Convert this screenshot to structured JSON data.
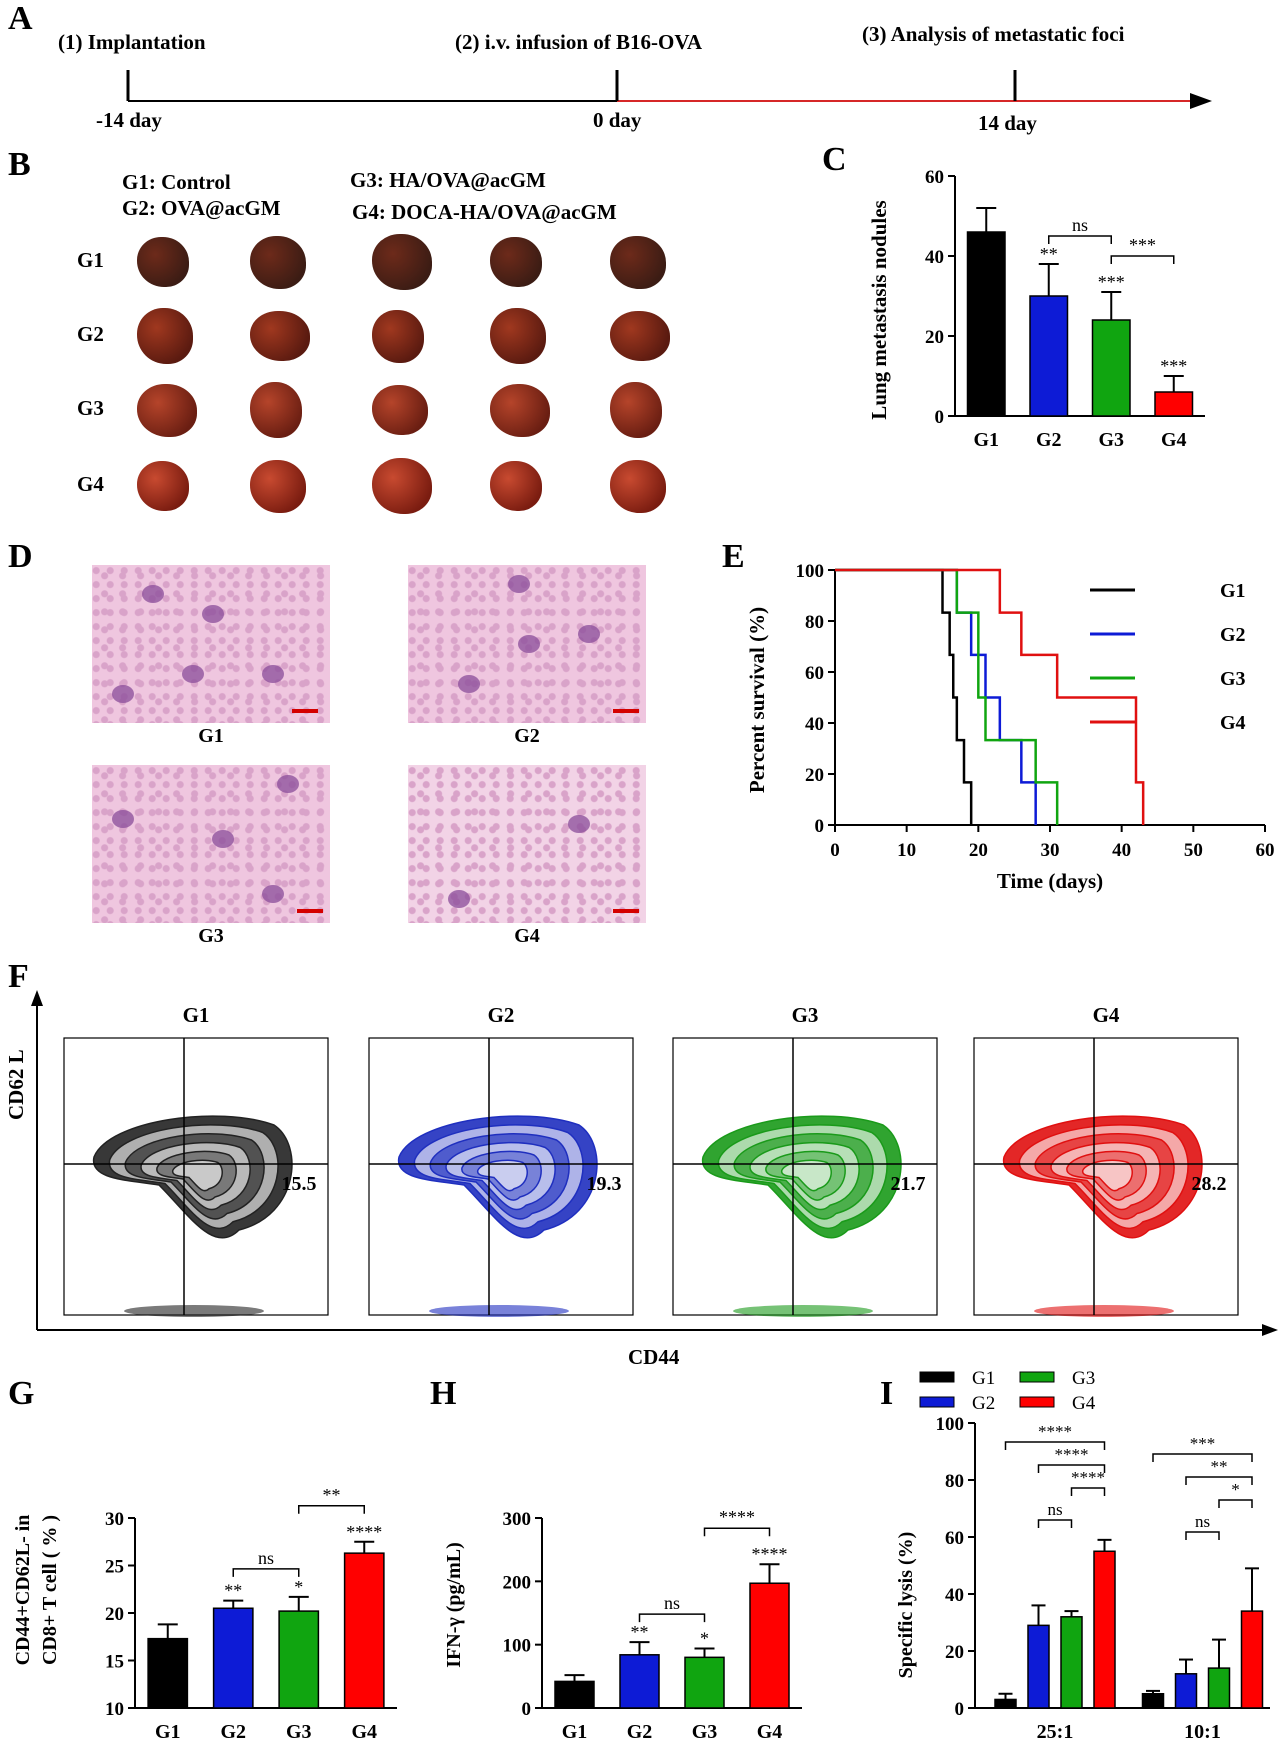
{
  "panel_letters": {
    "A": "A",
    "B": "B",
    "C": "C",
    "D": "D",
    "E": "E",
    "F": "F",
    "G": "G",
    "H": "H",
    "I": "I"
  },
  "timeline": {
    "step1": "(1) Implantation",
    "step2": "(2) i.v. infusion of B16-OVA",
    "step3": "(3) Analysis of metastatic foci",
    "t1": "-14 day",
    "t2": "0 day",
    "t3": "14 day",
    "colors": {
      "pre": "#000000",
      "post": "#d62728"
    }
  },
  "panel_B": {
    "legend": {
      "g1": "G1: Control",
      "g2": "G2: OVA@acGM",
      "g3": "G3: HA/OVA@acGM",
      "g4": "G4: DOCA-HA/OVA@acGM"
    },
    "rows": [
      "G1",
      "G2",
      "G3",
      "G4"
    ]
  },
  "panel_D": {
    "labels": [
      "G1",
      "G2",
      "G3",
      "G4"
    ]
  },
  "panel_F": {
    "groups": [
      "G1",
      "G2",
      "G3",
      "G4"
    ],
    "values": [
      "15.5",
      "19.3",
      "21.7",
      "28.2"
    ],
    "ylabel": "CD62 L",
    "xlabel": "CD44",
    "colors": [
      "#222222",
      "#1f2fbf",
      "#1a9a1a",
      "#e01010"
    ]
  },
  "chart_data": [
    {
      "id": "C",
      "type": "bar",
      "categories": [
        "G1",
        "G2",
        "G3",
        "G4"
      ],
      "values": [
        46,
        30,
        24,
        6
      ],
      "errors": [
        6,
        8,
        7,
        4
      ],
      "colors": [
        "#000000",
        "#0d1bd6",
        "#10a510",
        "#ff0000"
      ],
      "sig": [
        "",
        "**",
        "***",
        "***"
      ],
      "brackets": [
        {
          "from": 1,
          "to": 2,
          "label": "ns"
        },
        {
          "from": 2,
          "to": 3,
          "label": "***"
        }
      ],
      "ylabel": "Lung metastasis nodules",
      "yticks": [
        0,
        20,
        40,
        60
      ],
      "ylim": [
        0,
        60
      ]
    },
    {
      "id": "E",
      "type": "line",
      "title": "",
      "xlabel": "Time (days)",
      "ylabel": "Percent survival (%)",
      "xticks": [
        0,
        10,
        20,
        30,
        40,
        50,
        60
      ],
      "yticks": [
        0,
        20,
        40,
        60,
        80,
        100
      ],
      "xlim": [
        0,
        60
      ],
      "ylim": [
        0,
        100
      ],
      "series": [
        {
          "name": "G1",
          "color": "#000000",
          "steps": [
            [
              0,
              100
            ],
            [
              15,
              100
            ],
            [
              15,
              83.3
            ],
            [
              16,
              83.3
            ],
            [
              16,
              66.7
            ],
            [
              16.5,
              66.7
            ],
            [
              16.5,
              50
            ],
            [
              17,
              50
            ],
            [
              17,
              33.3
            ],
            [
              18,
              33.3
            ],
            [
              18,
              16.7
            ],
            [
              19,
              16.7
            ],
            [
              19,
              0
            ]
          ]
        },
        {
          "name": "G2",
          "color": "#0d1bd6",
          "steps": [
            [
              0,
              100
            ],
            [
              17,
              100
            ],
            [
              17,
              83.3
            ],
            [
              19,
              83.3
            ],
            [
              19,
              66.7
            ],
            [
              21,
              66.7
            ],
            [
              21,
              50
            ],
            [
              23,
              50
            ],
            [
              23,
              33.3
            ],
            [
              26,
              33.3
            ],
            [
              26,
              16.7
            ],
            [
              28,
              16.7
            ],
            [
              28,
              0
            ]
          ]
        },
        {
          "name": "G3",
          "color": "#10a510",
          "steps": [
            [
              0,
              100
            ],
            [
              17,
              100
            ],
            [
              17,
              83.3
            ],
            [
              20,
              83.3
            ],
            [
              20,
              50
            ],
            [
              21,
              50
            ],
            [
              21,
              33.3
            ],
            [
              28,
              33.3
            ],
            [
              28,
              16.7
            ],
            [
              31,
              16.7
            ],
            [
              31,
              0
            ]
          ]
        },
        {
          "name": "G4",
          "color": "#e01010",
          "steps": [
            [
              0,
              100
            ],
            [
              23,
              100
            ],
            [
              23,
              83.3
            ],
            [
              26,
              83.3
            ],
            [
              26,
              66.7
            ],
            [
              31,
              66.7
            ],
            [
              31,
              50
            ],
            [
              42,
              50
            ],
            [
              42,
              16.7
            ],
            [
              43,
              16.7
            ],
            [
              43,
              0
            ]
          ]
        }
      ]
    },
    {
      "id": "G",
      "type": "bar",
      "categories": [
        "G1",
        "G2",
        "G3",
        "G4"
      ],
      "values": [
        17.3,
        20.5,
        20.2,
        26.3
      ],
      "errors": [
        1.5,
        0.8,
        1.5,
        1.2
      ],
      "colors": [
        "#000000",
        "#0d1bd6",
        "#10a510",
        "#ff0000"
      ],
      "sig": [
        "",
        "**",
        "*",
        "****"
      ],
      "brackets": [
        {
          "from": 1,
          "to": 2,
          "label": "ns"
        },
        {
          "from": 2,
          "to": 3,
          "label": "**"
        }
      ],
      "ylabel_line1": "CD44+CD62L- in",
      "ylabel_line2": "CD8+ T cell ( % )",
      "yticks": [
        10,
        15,
        20,
        25,
        30
      ],
      "ylim": [
        10,
        30
      ]
    },
    {
      "id": "H",
      "type": "bar",
      "categories": [
        "G1",
        "G2",
        "G3",
        "G4"
      ],
      "values": [
        42,
        84,
        80,
        197
      ],
      "errors": [
        10,
        20,
        14,
        30
      ],
      "colors": [
        "#000000",
        "#0d1bd6",
        "#10a510",
        "#ff0000"
      ],
      "sig": [
        "",
        "**",
        "*",
        "****"
      ],
      "brackets": [
        {
          "from": 1,
          "to": 2,
          "label": "ns"
        },
        {
          "from": 2,
          "to": 3,
          "label": "****"
        }
      ],
      "ylabel": "IFN-γ (pg/mL)",
      "yticks": [
        0,
        100,
        200,
        300
      ],
      "ylim": [
        0,
        300
      ]
    },
    {
      "id": "I",
      "type": "bar",
      "categories": [
        "25:1",
        "10:1"
      ],
      "series": [
        {
          "name": "G1",
          "color": "#000000",
          "values": [
            3,
            5
          ],
          "errors": [
            2,
            1
          ]
        },
        {
          "name": "G2",
          "color": "#0d1bd6",
          "values": [
            29,
            12
          ],
          "errors": [
            7,
            5
          ]
        },
        {
          "name": "G3",
          "color": "#10a510",
          "values": [
            32,
            14
          ],
          "errors": [
            2,
            10
          ]
        },
        {
          "name": "G4",
          "color": "#ff0000",
          "values": [
            55,
            34
          ],
          "errors": [
            4,
            15
          ]
        }
      ],
      "ylabel": "Specific lysis (%)",
      "yticks": [
        0,
        20,
        40,
        60,
        80,
        100
      ],
      "ylim": [
        0,
        100
      ],
      "brackets": [
        {
          "cat": 0,
          "from": 0,
          "to": 3,
          "label": "****"
        },
        {
          "cat": 0,
          "from": 1,
          "to": 3,
          "label": "****"
        },
        {
          "cat": 0,
          "from": 2,
          "to": 3,
          "label": "****"
        },
        {
          "cat": 0,
          "from": 1,
          "to": 2,
          "label": "ns"
        },
        {
          "cat": 1,
          "from": 0,
          "to": 3,
          "label": "***"
        },
        {
          "cat": 1,
          "from": 1,
          "to": 3,
          "label": "**"
        },
        {
          "cat": 1,
          "from": 2,
          "to": 3,
          "label": "*"
        },
        {
          "cat": 1,
          "from": 1,
          "to": 2,
          "label": "ns"
        }
      ]
    }
  ]
}
